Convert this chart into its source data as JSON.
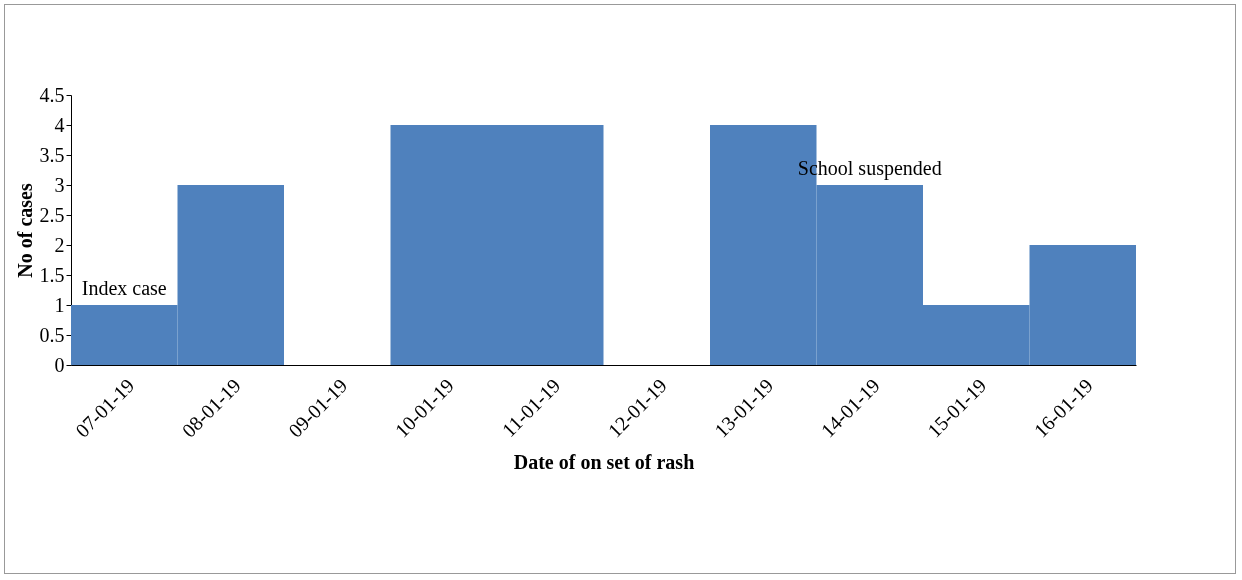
{
  "chart_data": {
    "type": "bar",
    "xlabel": "Date of on set of rash",
    "ylabel": "No of cases",
    "categories": [
      "07-01-19",
      "08-01-19",
      "09-01-19",
      "10-01-19",
      "11-01-19",
      "12-01-19",
      "13-01-19",
      "14-01-19",
      "15-01-19",
      "16-01-19"
    ],
    "values": [
      1,
      3,
      0,
      4,
      4,
      0,
      4,
      3,
      1,
      2
    ],
    "color": "#4f81bd",
    "ylim": [
      0,
      4.5
    ],
    "yticks": [
      0,
      0.5,
      1,
      1.5,
      2,
      2.5,
      3,
      3.5,
      4,
      4.5
    ],
    "grid": false,
    "annotations": [
      {
        "text": "Index case",
        "x": "07-01-19",
        "y": 1
      },
      {
        "text": "School suspended",
        "x": "14-01-19",
        "y": 3
      }
    ]
  }
}
